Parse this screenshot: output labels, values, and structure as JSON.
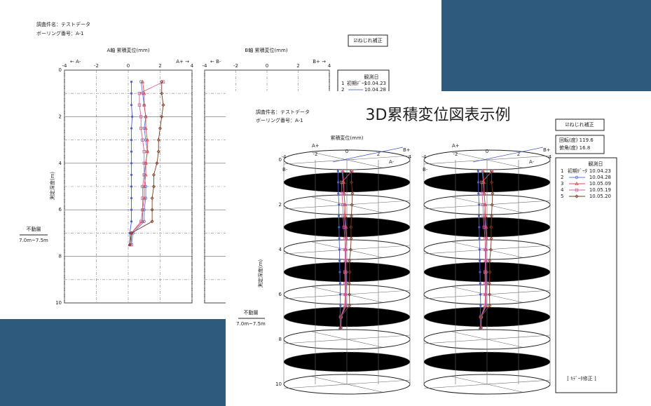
{
  "back_sheet": {
    "project": "調査件名：テストデータ",
    "boring": "ボーリング番号：A-1",
    "torsion": "☑ねじれ補正",
    "chart_a": {
      "title": "A軸 累積変位(mm)",
      "minus": "← A-",
      "plus": "A+ →",
      "xlim": [
        -4,
        4
      ],
      "xticks": [
        -4,
        -2,
        0,
        2,
        4
      ],
      "ylim": [
        0,
        10
      ],
      "yticks": [
        0,
        2,
        4,
        6,
        8,
        10
      ],
      "ylabel": "測定深度(m)",
      "depths": [
        0.5,
        1,
        1.5,
        2,
        2.5,
        3,
        3.5,
        4,
        4.5,
        5,
        5.5,
        6,
        6.5,
        7,
        7.5
      ],
      "series": [
        {
          "color": "#4a5fc8",
          "marker": "dot",
          "values": [
            0.2,
            0.2,
            0.2,
            0.25,
            0.2,
            0.2,
            0.2,
            0.2,
            0.2,
            0.2,
            0.2,
            0.2,
            0.2,
            0.1,
            0.1
          ]
        },
        {
          "color": "#5a7ad8",
          "marker": "circle",
          "values": [
            0.8,
            0.9,
            1.0,
            1.1,
            1.0,
            1.1,
            1.2,
            1.1,
            1.0,
            1.1,
            1.1,
            1.0,
            1.0,
            0.3,
            0.2
          ]
        },
        {
          "color": "#e04848",
          "marker": "triangle",
          "values": [
            0.9,
            1.0,
            1.0,
            1.1,
            1.1,
            1.2,
            1.2,
            1.1,
            1.1,
            1.0,
            1.0,
            0.9,
            0.9,
            0.2,
            0.1
          ]
        },
        {
          "color": "#d0609a",
          "marker": "square",
          "values": [
            2.2,
            0.7,
            0.7,
            0.8,
            0.8,
            0.9,
            1.0,
            1.0,
            1.0,
            0.9,
            0.9,
            0.9,
            0.8,
            0.2,
            0.2
          ]
        },
        {
          "color": "#7a3a20",
          "marker": "diamond",
          "values": [
            2.1,
            2.1,
            2.2,
            2.1,
            2.0,
            1.9,
            1.9,
            1.8,
            1.6,
            1.6,
            1.5,
            1.5,
            1.5,
            0.2,
            0.1
          ]
        }
      ]
    },
    "chart_b": {
      "title": "B軸 累積変位(mm)",
      "minus": "← B-",
      "plus": "B+ →",
      "xticks": [
        -4,
        -2,
        0,
        2,
        4
      ]
    },
    "fixed_layer": {
      "label": "不動層",
      "range": "7.0m~7.5m"
    },
    "legend": {
      "title": "観測日",
      "entries": [
        {
          "no": "1",
          "name": "初期ﾃﾞｰﾀ",
          "date": "10.04.23"
        },
        {
          "no": "2",
          "date": "10.04.28"
        }
      ]
    }
  },
  "front_sheet": {
    "title": "3D累積変位図表示例",
    "project": "調査件名：テストデータ",
    "boring": "ボーリング番号：A-1",
    "torsion": "☑ねじれ補正",
    "rotation": "回転(度) 119.6",
    "depression": "俯角(度) 16.8",
    "axis_title": "累積変位(mm)",
    "xticks": [
      -4,
      -2,
      0,
      2,
      4
    ],
    "axis_labels": [
      "A+",
      "B+",
      "A-",
      "B-"
    ],
    "yticks": [
      0,
      2,
      4,
      6,
      8,
      10
    ],
    "ylabel": "測定深度(m)",
    "fixed_layer": {
      "label": "不動層",
      "range": "7.0m~7.5m"
    },
    "legend": {
      "title": "観測日",
      "entries": [
        {
          "no": "1",
          "name": "初期ﾃﾞｰﾀ",
          "date": "10.04.23"
        },
        {
          "no": "2",
          "date": "10.04.28"
        },
        {
          "no": "3",
          "date": "10.05.09"
        },
        {
          "no": "4",
          "date": "10.05.19"
        },
        {
          "no": "5",
          "date": "10.05.20"
        }
      ]
    },
    "edit_button": "[ ｷﾃﾞｰﾀ修正 ]"
  }
}
